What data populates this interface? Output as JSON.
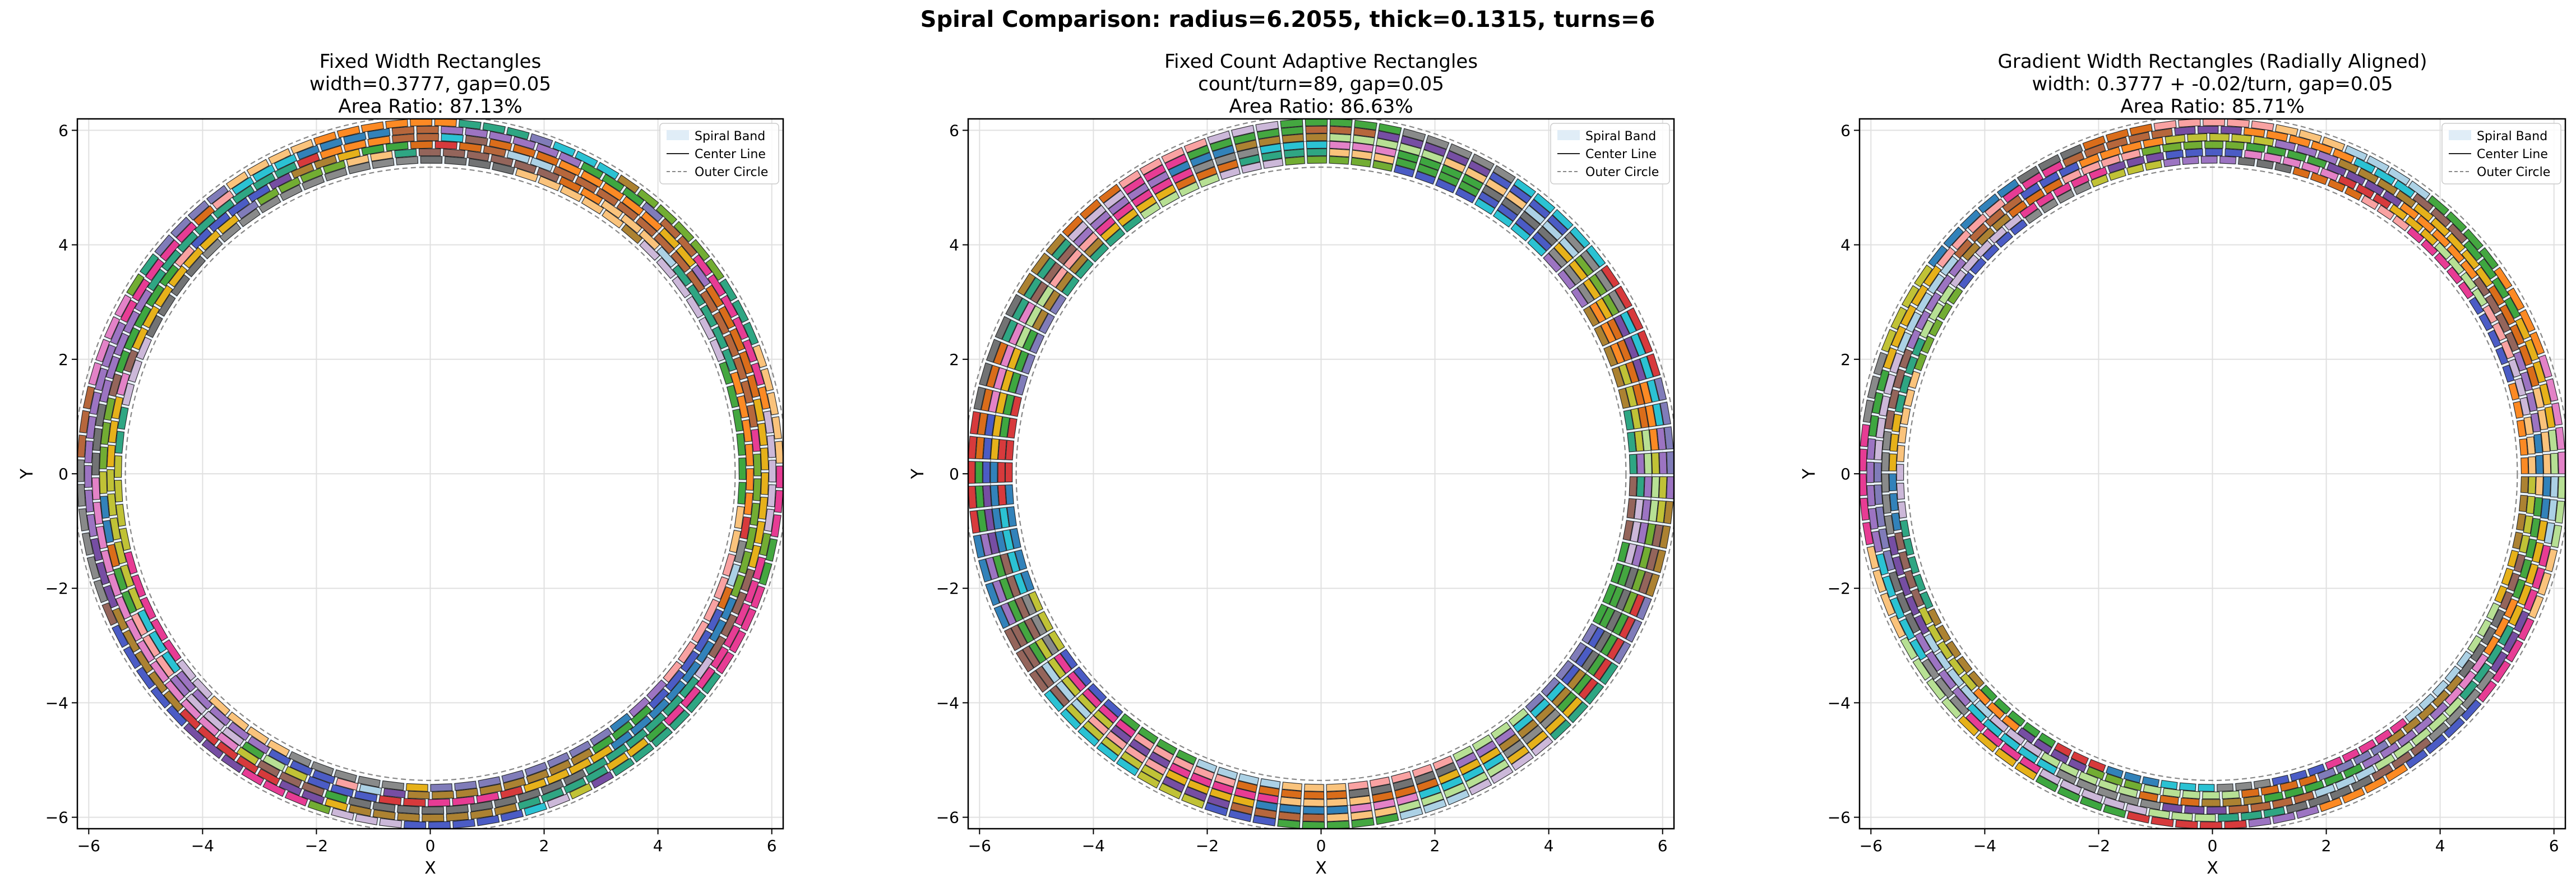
{
  "figure": {
    "suptitle": "Spiral Comparison: radius=6.2055, thick=0.1315, turns=6",
    "legend_labels": [
      "Spiral Band",
      "Center Line",
      "Outer Circle"
    ]
  },
  "colors": {
    "palette": [
      "#2ca02c",
      "#d62728",
      "#1f77b4",
      "#9467bd",
      "#8c564b",
      "#e377c2",
      "#17becf",
      "#bcbd22",
      "#ff7f0e",
      "#7f7f7f",
      "#3b4cc0",
      "#6a3d9a",
      "#b15928",
      "#33a02c",
      "#e7298a",
      "#66a61e",
      "#a6cee3",
      "#fdbf6f",
      "#cab2d6",
      "#fb9a99",
      "#b2df8a",
      "#1b9e77",
      "#d95f02",
      "#7570b3",
      "#e6ab02",
      "#a6761d",
      "#666666"
    ],
    "band_fill": "#d8e8f5",
    "grid": "#e0e0e0",
    "outer_circle": "#888888",
    "rect_edge": "#111111",
    "gap_line": "#f5f5f5"
  },
  "chart_data": [
    {
      "type": "scatter",
      "title": [
        "Fixed Width Rectangles",
        "width=0.3777, gap=0.05",
        "Area Ratio: 87.13%"
      ],
      "xlabel": "X",
      "ylabel": "Y",
      "xlim": [
        -6.2,
        6.2
      ],
      "ylim": [
        -6.2,
        6.2
      ],
      "xticks": [
        -6,
        -4,
        -2,
        0,
        2,
        4,
        6
      ],
      "yticks": [
        -6,
        -4,
        -2,
        0,
        2,
        4,
        6
      ],
      "grid": true,
      "legend_position": "upper right",
      "legend": [
        "Spiral Band",
        "Center Line",
        "Outer Circle"
      ],
      "spiral": {
        "outer_radius": 6.2055,
        "inner_radius": 5.4165,
        "thickness": 0.1315,
        "turns": 6
      },
      "rect_mode": "fixed_width",
      "rect_width": 0.3777,
      "gap": 0.05,
      "area_ratio": 87.13
    },
    {
      "type": "scatter",
      "title": [
        "Fixed Count Adaptive Rectangles",
        "count/turn=89, gap=0.05",
        "Area Ratio: 86.63%"
      ],
      "xlabel": "X",
      "ylabel": "Y",
      "xlim": [
        -6.2,
        6.2
      ],
      "ylim": [
        -6.2,
        6.2
      ],
      "xticks": [
        -6,
        -4,
        -2,
        0,
        2,
        4,
        6
      ],
      "yticks": [
        -6,
        -4,
        -2,
        0,
        2,
        4,
        6
      ],
      "grid": true,
      "legend_position": "upper right",
      "legend": [
        "Spiral Band",
        "Center Line",
        "Outer Circle"
      ],
      "spiral": {
        "outer_radius": 6.2055,
        "inner_radius": 5.4165,
        "thickness": 0.1315,
        "turns": 6
      },
      "rect_mode": "fixed_count",
      "count_per_turn": 89,
      "gap": 0.05,
      "area_ratio": 86.63
    },
    {
      "type": "scatter",
      "title": [
        "Gradient Width Rectangles (Radially Aligned)",
        "width: 0.3777 + -0.02/turn, gap=0.05",
        "Area Ratio: 85.71%"
      ],
      "xlabel": "X",
      "ylabel": "Y",
      "xlim": [
        -6.2,
        6.2
      ],
      "ylim": [
        -6.2,
        6.2
      ],
      "xticks": [
        -6,
        -4,
        -2,
        0,
        2,
        4,
        6
      ],
      "yticks": [
        -6,
        -4,
        -2,
        0,
        2,
        4,
        6
      ],
      "grid": true,
      "legend_position": "upper right",
      "legend": [
        "Spiral Band",
        "Center Line",
        "Outer Circle"
      ],
      "spiral": {
        "outer_radius": 6.2055,
        "inner_radius": 5.4165,
        "thickness": 0.1315,
        "turns": 6
      },
      "rect_mode": "gradient_radial",
      "rect_width": 0.3777,
      "width_step_per_turn": -0.02,
      "gap": 0.05,
      "area_ratio": 85.71
    }
  ]
}
